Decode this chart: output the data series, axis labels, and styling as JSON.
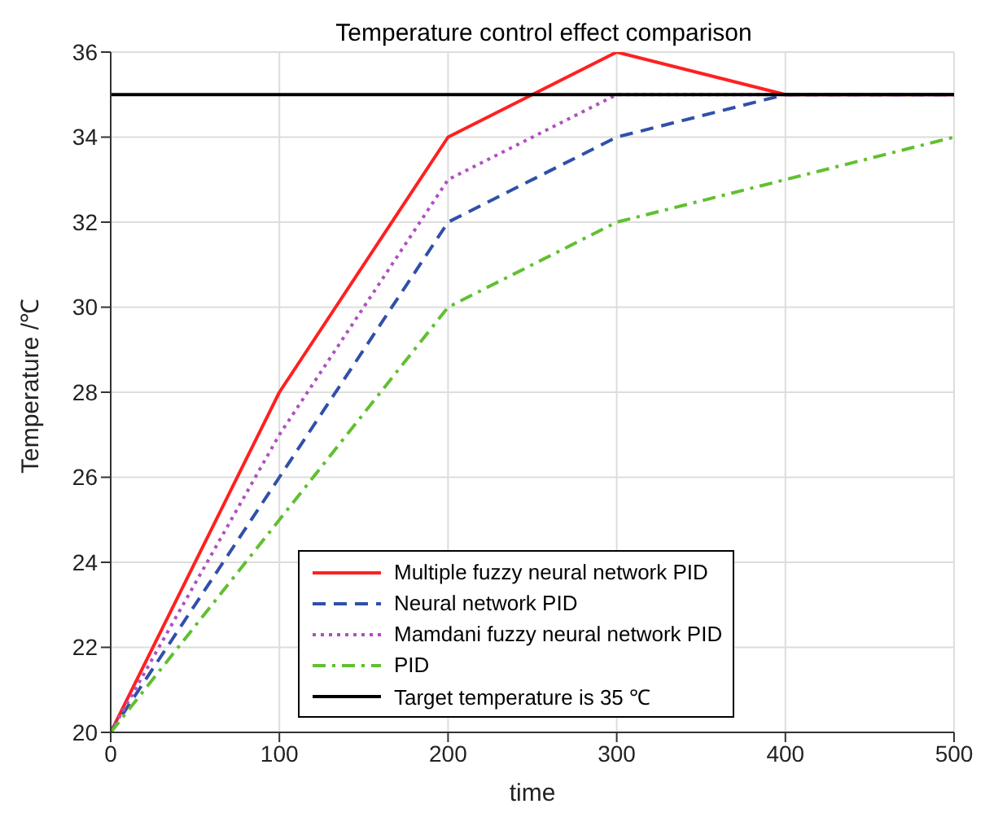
{
  "chart_data": {
    "type": "line",
    "title": "Temperature control effect comparison",
    "xlabel": "time",
    "ylabel": "Temperature /℃",
    "x": [
      0,
      100,
      200,
      300,
      400,
      500
    ],
    "series": [
      {
        "name": "Multiple fuzzy neural network PID",
        "color": "#ff2020",
        "line_style": "solid",
        "values": [
          20,
          28,
          34,
          36,
          35,
          35
        ]
      },
      {
        "name": "Neural network PID",
        "color": "#3050a8",
        "line_style": "dashed",
        "values": [
          20,
          26,
          32,
          34,
          35,
          35
        ]
      },
      {
        "name": "Mamdani fuzzy neural network PID",
        "color": "#b050c0",
        "line_style": "dotted",
        "values": [
          20,
          27,
          33,
          35,
          35,
          35
        ]
      },
      {
        "name": "PID",
        "color": "#60c030",
        "line_style": "dashdot",
        "values": [
          20,
          25,
          30,
          32,
          33,
          34
        ]
      },
      {
        "name": "Target temperature is 35 ℃",
        "color": "#000000",
        "line_style": "solid",
        "values": [
          35,
          35,
          35,
          35,
          35,
          35
        ]
      }
    ],
    "xlim": [
      0,
      500
    ],
    "xticks": [
      0,
      100,
      200,
      300,
      400,
      500
    ],
    "ylim": [
      20,
      36
    ],
    "yticks": [
      20,
      22,
      24,
      26,
      28,
      30,
      32,
      34,
      36
    ],
    "grid": true,
    "legend": "bottom",
    "marker": "none"
  }
}
